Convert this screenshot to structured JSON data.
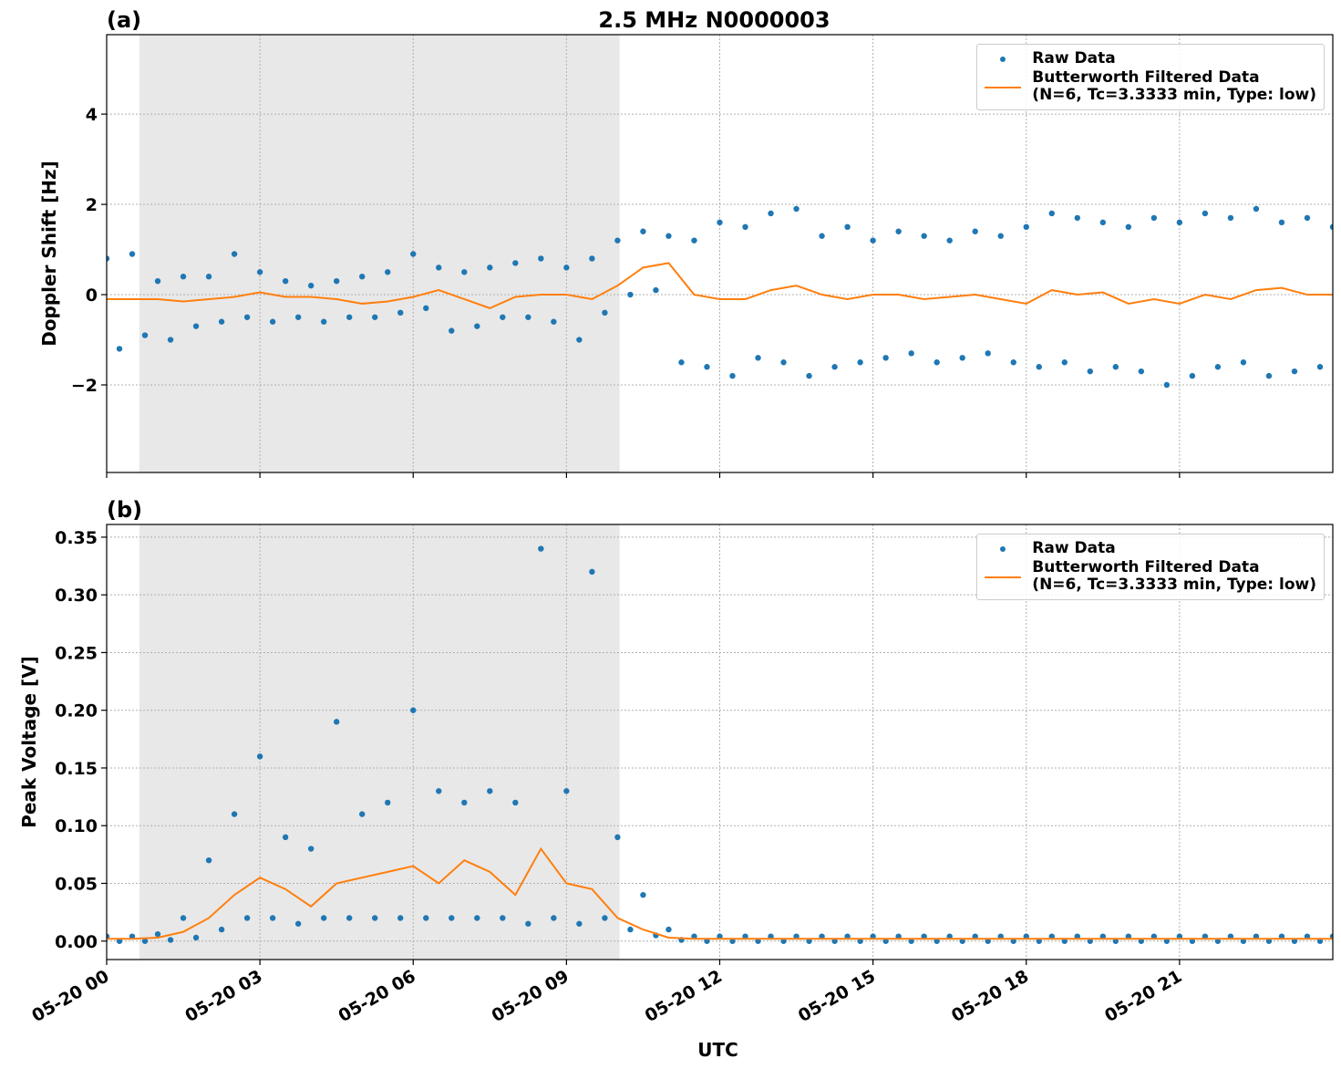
{
  "chart_data": [
    {
      "type": "line",
      "title": "2.5 MHz N0000003",
      "panel_label": "(a)",
      "ylabel": "Doppler Shift [Hz]",
      "xlim": [
        0,
        24
      ],
      "xticks": [
        0,
        3,
        6,
        9,
        12,
        15,
        18,
        21
      ],
      "xtick_labels_shown": false,
      "ylim": [
        -3.94,
        5.76
      ],
      "yticks": [
        {
          "value": -2,
          "label": "−2"
        },
        0,
        2,
        4
      ],
      "grid": true,
      "legend": "upper right",
      "shaded_span": [
        0.64,
        10.04
      ],
      "shade_color": "#e8e8e8",
      "series": [
        {
          "name": "Raw Data",
          "style": "dots",
          "color": "#1f77b4",
          "x": [
            0,
            0.25,
            0.5,
            0.75,
            1,
            1.25,
            1.5,
            1.75,
            2,
            2.25,
            2.5,
            2.75,
            3,
            3.25,
            3.5,
            3.75,
            4,
            4.25,
            4.5,
            4.75,
            5,
            5.25,
            5.5,
            5.75,
            6,
            6.25,
            6.5,
            6.75,
            7,
            7.25,
            7.5,
            7.75,
            8,
            8.25,
            8.5,
            8.75,
            9,
            9.25,
            9.5,
            9.75,
            10,
            10.25,
            10.5,
            10.75,
            11,
            11.25,
            11.5,
            11.75,
            12,
            12.25,
            12.5,
            12.75,
            13,
            13.25,
            13.5,
            13.75,
            14,
            14.25,
            14.5,
            14.75,
            15,
            15.25,
            15.5,
            15.75,
            16,
            16.25,
            16.5,
            16.75,
            17,
            17.25,
            17.5,
            17.75,
            18,
            18.25,
            18.5,
            18.75,
            19,
            19.25,
            19.5,
            19.75,
            20,
            20.25,
            20.5,
            20.75,
            21,
            21.25,
            21.5,
            21.75,
            22,
            22.25,
            22.5,
            22.75,
            23,
            23.25,
            23.5,
            23.75,
            24
          ],
          "values": [
            0.8,
            -1.2,
            0.9,
            -0.9,
            0.3,
            -1.0,
            0.4,
            -0.7,
            0.4,
            -0.6,
            0.9,
            -0.5,
            0.5,
            -0.6,
            0.3,
            -0.5,
            0.2,
            -0.6,
            0.3,
            -0.5,
            0.4,
            -0.5,
            0.5,
            -0.4,
            0.9,
            -0.3,
            0.6,
            -0.8,
            0.5,
            -0.7,
            0.6,
            -0.5,
            0.7,
            -0.5,
            0.8,
            -0.6,
            0.6,
            -1.0,
            0.8,
            -0.4,
            1.2,
            0.0,
            1.4,
            0.1,
            1.3,
            -1.5,
            1.2,
            -1.6,
            1.6,
            -1.8,
            1.5,
            -1.4,
            1.8,
            -1.5,
            1.9,
            -1.8,
            1.3,
            -1.6,
            1.5,
            -1.5,
            1.2,
            -1.4,
            1.4,
            -1.3,
            1.3,
            -1.5,
            1.2,
            -1.4,
            1.4,
            -1.3,
            1.3,
            -1.5,
            1.5,
            -1.6,
            1.8,
            -1.5,
            1.7,
            -1.7,
            1.6,
            -1.6,
            1.5,
            -1.7,
            1.7,
            -2.0,
            1.6,
            -1.8,
            1.8,
            -1.6,
            1.7,
            -1.5,
            1.9,
            -1.8,
            1.6,
            -1.7,
            1.7,
            -1.6,
            1.5
          ]
        },
        {
          "name": "Butterworth Filtered Data\n(N=6, Tc=3.3333 min, Type: low)",
          "style": "line",
          "color": "#ff7f0e",
          "x": [
            0,
            0.5,
            1,
            1.5,
            2,
            2.5,
            3,
            3.5,
            4,
            4.5,
            5,
            5.5,
            6,
            6.5,
            7,
            7.5,
            8,
            8.5,
            9,
            9.5,
            10,
            10.5,
            11,
            11.5,
            12,
            12.5,
            13,
            13.5,
            14,
            14.5,
            15,
            15.5,
            16,
            16.5,
            17,
            17.5,
            18,
            18.5,
            19,
            19.5,
            20,
            20.5,
            21,
            21.5,
            22,
            22.5,
            23,
            23.5,
            24
          ],
          "values": [
            -0.1,
            -0.1,
            -0.1,
            -0.15,
            -0.1,
            -0.05,
            0.05,
            -0.05,
            -0.05,
            -0.1,
            -0.2,
            -0.15,
            -0.05,
            0.1,
            -0.1,
            -0.3,
            -0.05,
            0.0,
            0.0,
            -0.1,
            0.2,
            0.6,
            0.7,
            0.0,
            -0.1,
            -0.1,
            0.1,
            0.2,
            0.0,
            -0.1,
            0.0,
            0.0,
            -0.1,
            -0.05,
            0.0,
            -0.1,
            -0.2,
            0.1,
            0.0,
            0.05,
            -0.2,
            -0.1,
            -0.2,
            0.0,
            -0.1,
            0.1,
            0.15,
            0.0,
            0.0
          ]
        }
      ]
    },
    {
      "type": "line",
      "panel_label": "(b)",
      "ylabel": "Peak Voltage [V]",
      "xlabel": "UTC",
      "xlim": [
        0,
        24
      ],
      "xticks": [
        {
          "value": 0,
          "label": "05-20 00"
        },
        {
          "value": 3,
          "label": "05-20 03"
        },
        {
          "value": 6,
          "label": "05-20 06"
        },
        {
          "value": 9,
          "label": "05-20 09"
        },
        {
          "value": 12,
          "label": "05-20 12"
        },
        {
          "value": 15,
          "label": "05-20 15"
        },
        {
          "value": 18,
          "label": "05-20 18"
        },
        {
          "value": 21,
          "label": "05-20 21"
        }
      ],
      "xtick_labels_shown": true,
      "ylim": [
        -0.016,
        0.361
      ],
      "yticks": [
        {
          "value": 0,
          "label": "0.00"
        },
        {
          "value": 0.05,
          "label": "0.05"
        },
        {
          "value": 0.1,
          "label": "0.10"
        },
        {
          "value": 0.15,
          "label": "0.15"
        },
        {
          "value": 0.2,
          "label": "0.20"
        },
        {
          "value": 0.25,
          "label": "0.25"
        },
        {
          "value": 0.3,
          "label": "0.30"
        },
        {
          "value": 0.35,
          "label": "0.35"
        }
      ],
      "grid": true,
      "legend": "upper right",
      "shaded_span": [
        0.64,
        10.04
      ],
      "shade_color": "#e8e8e8",
      "series": [
        {
          "name": "Raw Data",
          "style": "dots",
          "color": "#1f77b4",
          "x": [
            0,
            0.25,
            0.5,
            0.75,
            1,
            1.25,
            1.5,
            1.75,
            2,
            2.25,
            2.5,
            2.75,
            3,
            3.25,
            3.5,
            3.75,
            4,
            4.25,
            4.5,
            4.75,
            5,
            5.25,
            5.5,
            5.75,
            6,
            6.25,
            6.5,
            6.75,
            7,
            7.25,
            7.5,
            7.75,
            8,
            8.25,
            8.5,
            8.75,
            9,
            9.25,
            9.5,
            9.75,
            10,
            10.25,
            10.5,
            10.75,
            11,
            11.25,
            11.5,
            11.75,
            12,
            12.25,
            12.5,
            12.75,
            13,
            13.25,
            13.5,
            13.75,
            14,
            14.25,
            14.5,
            14.75,
            15,
            15.25,
            15.5,
            15.75,
            16,
            16.25,
            16.5,
            16.75,
            17,
            17.25,
            17.5,
            17.75,
            18,
            18.25,
            18.5,
            18.75,
            19,
            19.25,
            19.5,
            19.75,
            20,
            20.25,
            20.5,
            20.75,
            21,
            21.25,
            21.5,
            21.75,
            22,
            22.25,
            22.5,
            22.75,
            23,
            23.25,
            23.5,
            23.75,
            24
          ],
          "values": [
            0.004,
            0.0,
            0.004,
            0.0,
            0.006,
            0.001,
            0.02,
            0.003,
            0.07,
            0.01,
            0.11,
            0.02,
            0.16,
            0.02,
            0.09,
            0.015,
            0.08,
            0.02,
            0.19,
            0.02,
            0.11,
            0.02,
            0.12,
            0.02,
            0.2,
            0.02,
            0.13,
            0.02,
            0.12,
            0.02,
            0.13,
            0.02,
            0.12,
            0.015,
            0.34,
            0.02,
            0.13,
            0.015,
            0.32,
            0.02,
            0.09,
            0.01,
            0.04,
            0.005,
            0.01,
            0.001,
            0.004,
            0.0,
            0.004,
            0.0,
            0.004,
            0.0,
            0.004,
            0.0,
            0.004,
            0.0,
            0.004,
            0.0,
            0.004,
            0.0,
            0.004,
            0.0,
            0.004,
            0.0,
            0.004,
            0.0,
            0.004,
            0.0,
            0.004,
            0.0,
            0.004,
            0.0,
            0.004,
            0.0,
            0.004,
            0.0,
            0.004,
            0.0,
            0.004,
            0.0,
            0.004,
            0.0,
            0.004,
            0.0,
            0.004,
            0.0,
            0.004,
            0.0,
            0.004,
            0.0,
            0.004,
            0.0,
            0.004,
            0.0,
            0.004,
            0.0,
            0.004
          ]
        },
        {
          "name": "Butterworth Filtered Data\n(N=6, Tc=3.3333 min, Type: low)",
          "style": "line",
          "color": "#ff7f0e",
          "x": [
            0,
            0.5,
            1,
            1.5,
            2,
            2.5,
            3,
            3.5,
            4,
            4.5,
            5,
            5.5,
            6,
            6.5,
            7,
            7.5,
            8,
            8.5,
            9,
            9.5,
            10,
            10.5,
            11,
            11.5,
            12,
            12.5,
            13,
            13.5,
            14,
            14.5,
            15,
            15.5,
            16,
            16.5,
            17,
            17.5,
            18,
            18.5,
            19,
            19.5,
            20,
            20.5,
            21,
            21.5,
            22,
            22.5,
            23,
            23.5,
            24
          ],
          "values": [
            0.002,
            0.002,
            0.003,
            0.008,
            0.02,
            0.04,
            0.055,
            0.045,
            0.03,
            0.05,
            0.055,
            0.06,
            0.065,
            0.05,
            0.07,
            0.06,
            0.04,
            0.08,
            0.05,
            0.045,
            0.02,
            0.01,
            0.003,
            0.002,
            0.002,
            0.002,
            0.002,
            0.002,
            0.002,
            0.002,
            0.002,
            0.002,
            0.002,
            0.002,
            0.002,
            0.002,
            0.002,
            0.002,
            0.002,
            0.002,
            0.002,
            0.002,
            0.002,
            0.002,
            0.002,
            0.002,
            0.002,
            0.002,
            0.002
          ]
        }
      ]
    }
  ]
}
